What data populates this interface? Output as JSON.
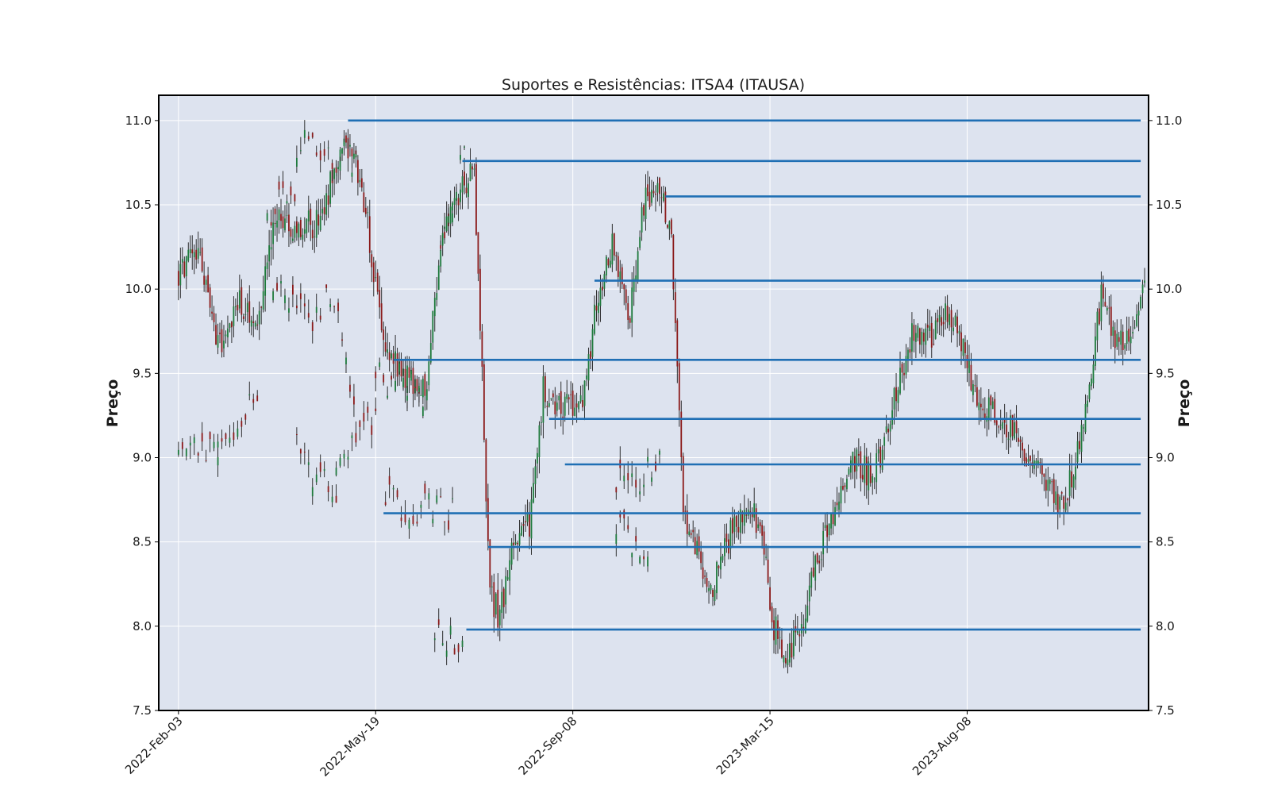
{
  "chart_data": {
    "type": "candlestick",
    "title": "Suportes e Resistências: ITSA4 (ITAUSA)",
    "ylabel": "Preço",
    "ylabel_right": "Preço",
    "ylim": [
      7.5,
      11.15
    ],
    "yticks": [
      7.5,
      8.0,
      8.5,
      9.0,
      9.5,
      10.0,
      10.5,
      11.0
    ],
    "ytick_labels": [
      "7.5",
      "8.0",
      "8.5",
      "9.0",
      "9.5",
      "10.0",
      "10.5",
      "11.0"
    ],
    "xlim_index": [
      -10,
      492
    ],
    "xticks": [
      {
        "label": "2022-Feb-03",
        "index": 0
      },
      {
        "label": "2022-May-19",
        "index": 100
      },
      {
        "label": "2022-Sep-08",
        "index": 200
      },
      {
        "label": "2023-Mar-15",
        "index": 300
      },
      {
        "label": "2023-Aug-08",
        "index": 400
      }
    ],
    "grid": true,
    "colors": {
      "background": "#dde3ef",
      "grid": "#ffffff",
      "up_candle": "#1e7a3c",
      "down_candle": "#8b1a1a",
      "level_line": "#1f6fb4",
      "frame": "#000000"
    },
    "levels": [
      {
        "price": 11.0,
        "start_index": 86,
        "end_index": 488
      },
      {
        "price": 10.76,
        "start_index": 144,
        "end_index": 488
      },
      {
        "price": 10.55,
        "start_index": 247,
        "end_index": 488
      },
      {
        "price": 10.05,
        "start_index": 211,
        "end_index": 488
      },
      {
        "price": 9.58,
        "start_index": 109,
        "end_index": 488
      },
      {
        "price": 9.23,
        "start_index": 188,
        "end_index": 488
      },
      {
        "price": 8.96,
        "start_index": 196,
        "end_index": 488
      },
      {
        "price": 8.67,
        "start_index": 104,
        "end_index": 488
      },
      {
        "price": 8.47,
        "start_index": 157,
        "end_index": 488
      },
      {
        "price": 7.98,
        "start_index": 146,
        "end_index": 488
      }
    ],
    "price_path": [
      [
        0,
        10.1
      ],
      [
        10,
        10.2
      ],
      [
        20,
        9.65
      ],
      [
        30,
        9.95
      ],
      [
        40,
        9.8
      ],
      [
        50,
        10.45
      ],
      [
        60,
        10.35
      ],
      [
        70,
        10.4
      ],
      [
        80,
        10.7
      ],
      [
        86,
        10.9
      ],
      [
        95,
        10.5
      ],
      [
        100,
        10.0
      ],
      [
        105,
        9.6
      ],
      [
        115,
        9.5
      ],
      [
        125,
        9.4
      ],
      [
        135,
        10.35
      ],
      [
        144,
        10.6
      ],
      [
        150,
        10.7
      ],
      [
        158,
        8.2
      ],
      [
        163,
        8.05
      ],
      [
        170,
        8.5
      ],
      [
        178,
        8.6
      ],
      [
        185,
        9.4
      ],
      [
        195,
        9.3
      ],
      [
        205,
        9.35
      ],
      [
        212,
        9.9
      ],
      [
        220,
        10.25
      ],
      [
        228,
        9.8
      ],
      [
        236,
        10.5
      ],
      [
        244,
        10.6
      ],
      [
        250,
        10.3
      ],
      [
        256,
        8.7
      ],
      [
        262,
        8.5
      ],
      [
        268,
        8.15
      ],
      [
        275,
        8.4
      ],
      [
        282,
        8.6
      ],
      [
        290,
        8.75
      ],
      [
        296,
        8.5
      ],
      [
        302,
        8.0
      ],
      [
        308,
        7.85
      ],
      [
        314,
        7.95
      ],
      [
        320,
        8.2
      ],
      [
        328,
        8.55
      ],
      [
        335,
        8.75
      ],
      [
        342,
        9.0
      ],
      [
        350,
        8.9
      ],
      [
        357,
        9.05
      ],
      [
        365,
        9.45
      ],
      [
        372,
        9.75
      ],
      [
        380,
        9.7
      ],
      [
        388,
        9.85
      ],
      [
        395,
        9.75
      ],
      [
        402,
        9.45
      ],
      [
        410,
        9.3
      ],
      [
        418,
        9.2
      ],
      [
        425,
        9.15
      ],
      [
        432,
        8.95
      ],
      [
        440,
        8.85
      ],
      [
        448,
        8.7
      ],
      [
        455,
        8.95
      ],
      [
        462,
        9.45
      ],
      [
        468,
        9.95
      ],
      [
        474,
        9.75
      ],
      [
        480,
        9.65
      ],
      [
        486,
        9.8
      ],
      [
        490,
        10.1
      ]
    ],
    "scattered_candles": [
      {
        "anchor": [
          0,
          9.05
        ],
        "span": [
          0,
          20
        ],
        "drift": [
          0,
          -0.05
        ]
      },
      {
        "anchor": [
          20,
          9.05
        ],
        "span": [
          20,
          40
        ],
        "drift": [
          0,
          0.3
        ]
      },
      {
        "anchor": [
          45,
          10.45
        ],
        "span": [
          45,
          60
        ],
        "drift": [
          0,
          0.1
        ]
      },
      {
        "anchor": [
          48,
          10.0
        ],
        "span": [
          48,
          72
        ],
        "drift": [
          0,
          -0.2
        ]
      },
      {
        "anchor": [
          60,
          9.05
        ],
        "span": [
          60,
          80
        ],
        "drift": [
          0,
          -0.3
        ]
      },
      {
        "anchor": [
          60,
          10.85
        ],
        "span": [
          60,
          90
        ],
        "drift": [
          0,
          -0.1
        ]
      },
      {
        "anchor": [
          75,
          10.1
        ],
        "span": [
          75,
          90
        ],
        "drift": [
          0,
          -0.8
        ]
      },
      {
        "anchor": [
          80,
          9.0
        ],
        "span": [
          80,
          100
        ],
        "drift": [
          0,
          0.25
        ]
      },
      {
        "anchor": [
          100,
          9.5
        ],
        "span": [
          100,
          125
        ],
        "drift": [
          0,
          -0.1
        ]
      },
      {
        "anchor": [
          105,
          8.75
        ],
        "span": [
          105,
          140
        ],
        "drift": [
          0,
          -0.1
        ]
      },
      {
        "anchor": [
          130,
          8.0
        ],
        "span": [
          130,
          145
        ],
        "drift": [
          0,
          -0.1
        ]
      },
      {
        "anchor": [
          133,
          10.2
        ],
        "span": [
          133,
          145
        ],
        "drift": [
          0,
          0.6
        ]
      },
      {
        "anchor": [
          222,
          8.85
        ],
        "span": [
          222,
          245
        ],
        "drift": [
          0,
          0.1
        ]
      },
      {
        "anchor": [
          222,
          8.6
        ],
        "span": [
          222,
          238
        ],
        "drift": [
          0,
          -0.2
        ]
      }
    ]
  }
}
